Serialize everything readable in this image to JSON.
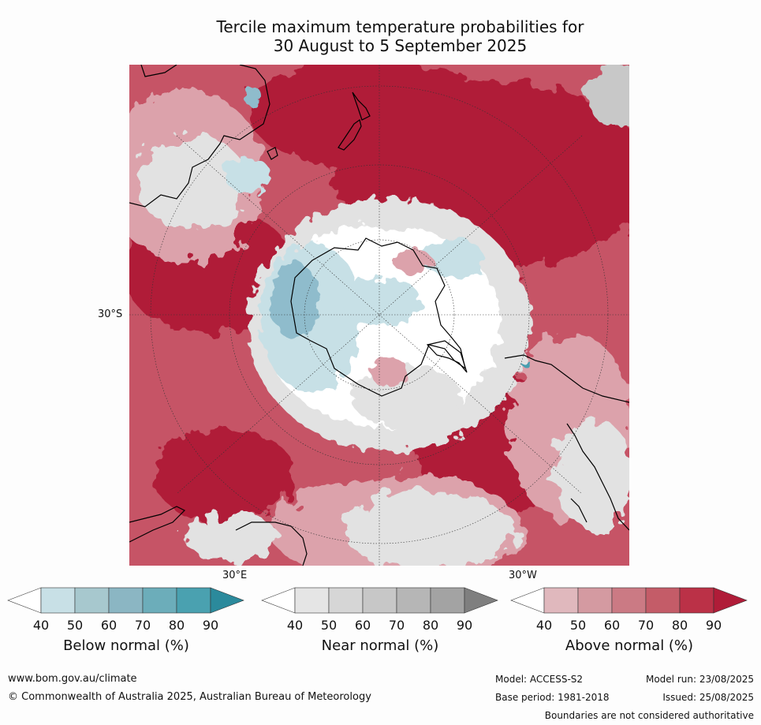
{
  "title": {
    "line1": "Tercile maximum temperature probabilities for",
    "line2": "30 August to 5 September 2025"
  },
  "map": {
    "lat_label": "30°S",
    "lon_label_left": "30°E",
    "lon_label_right": "30°W",
    "colors": {
      "above_dark": "#b01c38",
      "above_mid": "#c65466",
      "above_light": "#dca2ab",
      "near_light": "#e2e2e2",
      "near_mid": "#c8c8c8",
      "below_light": "#c7e0e6",
      "below_mid": "#8fbccc",
      "below_dark": "#4a9fb0"
    }
  },
  "colorbars": [
    {
      "label": "Below normal (%)",
      "ticks": [
        "40",
        "50",
        "60",
        "70",
        "80",
        "90"
      ],
      "colors": [
        "#ffffff",
        "#c8e0e6",
        "#a7c8ce",
        "#8bb6c3",
        "#6cadba",
        "#4aa1b0",
        "#2b8a9c"
      ]
    },
    {
      "label": "Near normal (%)",
      "ticks": [
        "40",
        "50",
        "60",
        "70",
        "80",
        "90"
      ],
      "colors": [
        "#ffffff",
        "#e5e5e5",
        "#d6d6d6",
        "#c7c7c7",
        "#b6b6b6",
        "#a3a3a3",
        "#7f7f7f"
      ]
    },
    {
      "label": "Above normal (%)",
      "ticks": [
        "40",
        "50",
        "60",
        "70",
        "80",
        "90"
      ],
      "colors": [
        "#ffffff",
        "#e0b8bd",
        "#d49aa1",
        "#cb7a84",
        "#c45c68",
        "#bb3147",
        "#b01c38"
      ]
    }
  ],
  "footer": {
    "website": "www.bom.gov.au/climate",
    "copyright": "© Commonwealth of Australia 2025, Australian Bureau of Meteorology",
    "model": "Model: ACCESS-S2",
    "model_run": "Model run: 23/08/2025",
    "base_period": "Base period: 1981-2018",
    "issued": "Issued: 25/08/2025",
    "boundaries": "Boundaries are not considered authoritative"
  }
}
